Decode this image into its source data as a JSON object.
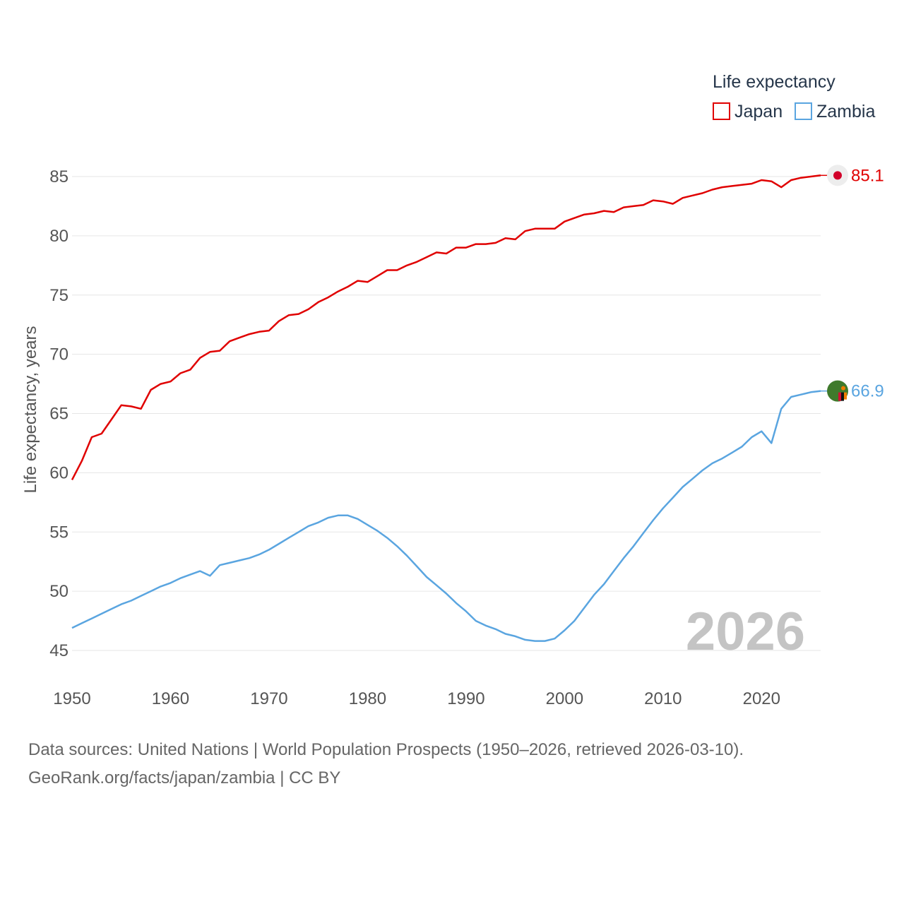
{
  "chart_data": {
    "type": "line",
    "title": "",
    "legend_title": "Life expectancy",
    "legend_position": "top-right",
    "xlabel": "",
    "ylabel": "Life expectancy, years",
    "xlim": [
      1950,
      2026
    ],
    "ylim": [
      45,
      85
    ],
    "x_ticks": [
      1950,
      1960,
      1970,
      1980,
      1990,
      2000,
      2010,
      2020
    ],
    "y_ticks": [
      45,
      50,
      55,
      60,
      65,
      70,
      75,
      80,
      85
    ],
    "grid": true,
    "current_year_label": "2026",
    "x": [
      1950,
      1951,
      1952,
      1953,
      1954,
      1955,
      1956,
      1957,
      1958,
      1959,
      1960,
      1961,
      1962,
      1963,
      1964,
      1965,
      1966,
      1967,
      1968,
      1969,
      1970,
      1971,
      1972,
      1973,
      1974,
      1975,
      1976,
      1977,
      1978,
      1979,
      1980,
      1981,
      1982,
      1983,
      1984,
      1985,
      1986,
      1987,
      1988,
      1989,
      1990,
      1991,
      1992,
      1993,
      1994,
      1995,
      1996,
      1997,
      1998,
      1999,
      2000,
      2001,
      2002,
      2003,
      2004,
      2005,
      2006,
      2007,
      2008,
      2009,
      2010,
      2011,
      2012,
      2013,
      2014,
      2015,
      2016,
      2017,
      2018,
      2019,
      2020,
      2021,
      2022,
      2023,
      2024,
      2025,
      2026
    ],
    "series": [
      {
        "name": "Japan",
        "color": "#e00000",
        "end_label": "85.1",
        "end_marker": "japan-flag",
        "values": [
          59.4,
          61.0,
          63.0,
          63.3,
          64.5,
          65.7,
          65.6,
          65.4,
          67.0,
          67.5,
          67.7,
          68.4,
          68.7,
          69.7,
          70.2,
          70.3,
          71.1,
          71.4,
          71.7,
          71.9,
          72.0,
          72.8,
          73.3,
          73.4,
          73.8,
          74.4,
          74.8,
          75.3,
          75.7,
          76.2,
          76.1,
          76.6,
          77.1,
          77.1,
          77.5,
          77.8,
          78.2,
          78.6,
          78.5,
          79.0,
          79.0,
          79.3,
          79.3,
          79.4,
          79.8,
          79.7,
          80.4,
          80.6,
          80.6,
          80.6,
          81.2,
          81.5,
          81.8,
          81.9,
          82.1,
          82.0,
          82.4,
          82.5,
          82.6,
          83.0,
          82.9,
          82.7,
          83.2,
          83.4,
          83.6,
          83.9,
          84.1,
          84.2,
          84.3,
          84.4,
          84.7,
          84.6,
          84.1,
          84.7,
          84.9,
          85.0,
          85.1
        ]
      },
      {
        "name": "Zambia",
        "color": "#5aa5e0",
        "end_label": "66.9",
        "end_marker": "zambia-flag",
        "values": [
          46.9,
          47.3,
          47.7,
          48.1,
          48.5,
          48.9,
          49.2,
          49.6,
          50.0,
          50.4,
          50.7,
          51.1,
          51.4,
          51.7,
          51.3,
          52.2,
          52.4,
          52.6,
          52.8,
          53.1,
          53.5,
          54.0,
          54.5,
          55.0,
          55.5,
          55.8,
          56.2,
          56.4,
          56.4,
          56.1,
          55.6,
          55.1,
          54.5,
          53.8,
          53.0,
          52.1,
          51.2,
          50.5,
          49.8,
          49.0,
          48.3,
          47.5,
          47.1,
          46.8,
          46.4,
          46.2,
          45.9,
          45.8,
          45.8,
          46.0,
          46.7,
          47.5,
          48.6,
          49.7,
          50.6,
          51.7,
          52.8,
          53.8,
          54.9,
          56.0,
          57.0,
          57.9,
          58.8,
          59.5,
          60.2,
          60.8,
          61.2,
          61.7,
          62.2,
          63.0,
          63.5,
          62.5,
          65.4,
          66.4,
          66.6,
          66.8,
          66.9
        ]
      }
    ]
  },
  "footer": {
    "source_line": "Data sources: United Nations | World Population Prospects (1950–2026, retrieved 2026-03-10).",
    "credit_line": "GeoRank.org/facts/japan/zambia | CC BY"
  }
}
